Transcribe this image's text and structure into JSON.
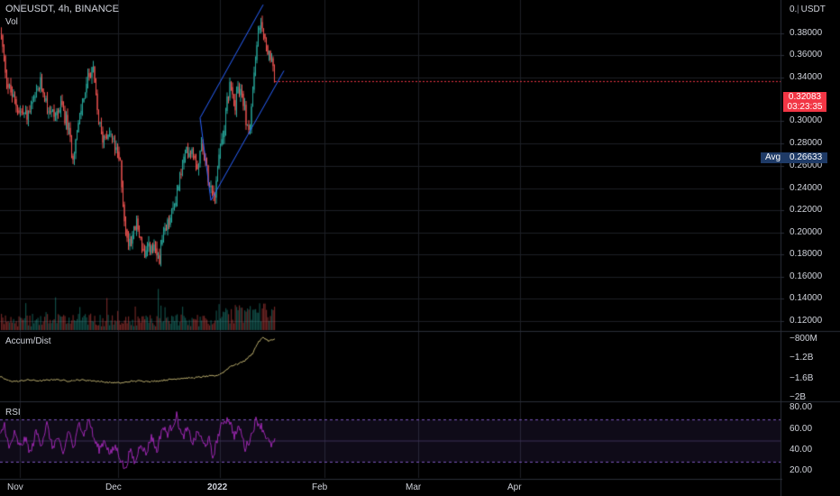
{
  "header": {
    "symbol_line": "ONEUSDT, 4h, BINANCE",
    "volume_label": "Vol"
  },
  "currency_button": "USDT",
  "price_axis": {
    "ticks": [
      "0.38000",
      "0.36000",
      "0.34000",
      "0.30000",
      "0.28000",
      "0.26000",
      "0.24000",
      "0.22000",
      "0.20000",
      "0.18000",
      "0.16000",
      "0.14000",
      "0.12000"
    ],
    "top_truncated_label": "0."
  },
  "last_price": {
    "value": "0.32083",
    "countdown": "03:23:35"
  },
  "avg_tag": {
    "label": "Avg",
    "value": "0.26633"
  },
  "accum_pane": {
    "title": "Accum/Dist",
    "ticks": [
      "−800M",
      "−1.2B",
      "−1.6B",
      "−2B"
    ]
  },
  "rsi_pane": {
    "title": "RSI",
    "ticks": [
      "80.00",
      "60.00",
      "40.00",
      "20.00"
    ]
  },
  "time_axis": {
    "labels": [
      {
        "text": "Nov",
        "bold": false
      },
      {
        "text": "Dec",
        "bold": false
      },
      {
        "text": "2022",
        "bold": true
      },
      {
        "text": "Feb",
        "bold": false
      },
      {
        "text": "Mar",
        "bold": false
      },
      {
        "text": "Apr",
        "bold": false
      }
    ]
  },
  "colors": {
    "up": "#26a69a",
    "down": "#ef5350",
    "accum_line": "#b5a86a",
    "rsi_line": "#9c27b0",
    "channel": "#2962ff",
    "grid": "#1c1f26",
    "price_tag": "#f23645",
    "avg_tag": "#1e3a66"
  },
  "chart_data": {
    "type": "candlestick",
    "symbol": "ONEUSDT",
    "interval": "4h",
    "exchange": "BINANCE",
    "price_range": [
      0.11,
      0.39
    ],
    "price_path": [
      [
        0,
        0.365
      ],
      [
        3,
        0.345
      ],
      [
        8,
        0.318
      ],
      [
        15,
        0.305
      ],
      [
        22,
        0.295
      ],
      [
        30,
        0.292
      ],
      [
        38,
        0.305
      ],
      [
        45,
        0.32
      ],
      [
        52,
        0.3
      ],
      [
        60,
        0.292
      ],
      [
        68,
        0.3
      ],
      [
        75,
        0.282
      ],
      [
        80,
        0.258
      ],
      [
        86,
        0.28
      ],
      [
        92,
        0.308
      ],
      [
        98,
        0.325
      ],
      [
        102,
        0.335
      ],
      [
        108,
        0.292
      ],
      [
        113,
        0.272
      ],
      [
        120,
        0.28
      ],
      [
        127,
        0.265
      ],
      [
        133,
        0.25
      ],
      [
        137,
        0.21
      ],
      [
        140,
        0.185
      ],
      [
        146,
        0.19
      ],
      [
        151,
        0.2
      ],
      [
        156,
        0.186
      ],
      [
        160,
        0.17
      ],
      [
        165,
        0.18
      ],
      [
        170,
        0.178
      ],
      [
        176,
        0.17
      ],
      [
        180,
        0.186
      ],
      [
        186,
        0.2
      ],
      [
        191,
        0.21
      ],
      [
        196,
        0.228
      ],
      [
        202,
        0.25
      ],
      [
        207,
        0.262
      ],
      [
        213,
        0.264
      ],
      [
        219,
        0.25
      ],
      [
        224,
        0.27
      ],
      [
        229,
        0.245
      ],
      [
        234,
        0.232
      ],
      [
        238,
        0.228
      ],
      [
        243,
        0.26
      ],
      [
        248,
        0.28
      ],
      [
        252,
        0.308
      ],
      [
        256,
        0.32
      ],
      [
        260,
        0.3
      ],
      [
        264,
        0.315
      ],
      [
        268,
        0.312
      ],
      [
        272,
        0.29
      ],
      [
        276,
        0.278
      ],
      [
        280,
        0.31
      ],
      [
        285,
        0.355
      ],
      [
        289,
        0.372
      ],
      [
        293,
        0.36
      ],
      [
        297,
        0.345
      ],
      [
        301,
        0.335
      ],
      [
        305,
        0.321
      ]
    ],
    "channel_lines": [
      {
        "x1": 222,
        "p1": 0.29,
        "x2": 292,
        "p2": 0.386
      },
      {
        "x1": 234,
        "p1": 0.22,
        "x2": 315,
        "p2": 0.33
      }
    ],
    "accum_range": [
      -2.0,
      -0.7
    ],
    "accum_path": [
      [
        0,
        -1.54
      ],
      [
        10,
        -1.62
      ],
      [
        20,
        -1.63
      ],
      [
        30,
        -1.6
      ],
      [
        45,
        -1.62
      ],
      [
        60,
        -1.59
      ],
      [
        75,
        -1.62
      ],
      [
        90,
        -1.6
      ],
      [
        105,
        -1.62
      ],
      [
        120,
        -1.65
      ],
      [
        135,
        -1.66
      ],
      [
        145,
        -1.63
      ],
      [
        155,
        -1.62
      ],
      [
        170,
        -1.63
      ],
      [
        185,
        -1.6
      ],
      [
        200,
        -1.57
      ],
      [
        215,
        -1.56
      ],
      [
        230,
        -1.53
      ],
      [
        240,
        -1.52
      ],
      [
        248,
        -1.45
      ],
      [
        256,
        -1.33
      ],
      [
        264,
        -1.29
      ],
      [
        272,
        -1.22
      ],
      [
        280,
        -1.09
      ],
      [
        286,
        -0.88
      ],
      [
        292,
        -0.77
      ],
      [
        298,
        -0.84
      ],
      [
        305,
        -0.81
      ]
    ],
    "rsi_range": [
      15,
      85
    ],
    "rsi_levels": [
      70,
      30
    ],
    "rsi_path": [
      [
        0,
        54
      ],
      [
        5,
        66
      ],
      [
        10,
        42
      ],
      [
        16,
        57
      ],
      [
        22,
        44
      ],
      [
        28,
        52
      ],
      [
        34,
        38
      ],
      [
        40,
        59
      ],
      [
        46,
        47
      ],
      [
        52,
        66
      ],
      [
        58,
        44
      ],
      [
        64,
        53
      ],
      [
        70,
        36
      ],
      [
        76,
        61
      ],
      [
        82,
        42
      ],
      [
        88,
        69
      ],
      [
        93,
        56
      ],
      [
        99,
        71
      ],
      [
        104,
        52
      ],
      [
        110,
        42
      ],
      [
        116,
        51
      ],
      [
        122,
        37
      ],
      [
        128,
        45
      ],
      [
        134,
        33
      ],
      [
        139,
        22
      ],
      [
        144,
        41
      ],
      [
        150,
        29
      ],
      [
        156,
        49
      ],
      [
        162,
        37
      ],
      [
        168,
        55
      ],
      [
        174,
        40
      ],
      [
        180,
        63
      ],
      [
        186,
        57
      ],
      [
        192,
        66
      ],
      [
        196,
        74
      ],
      [
        202,
        53
      ],
      [
        208,
        61
      ],
      [
        214,
        48
      ],
      [
        220,
        59
      ],
      [
        226,
        46
      ],
      [
        232,
        51
      ],
      [
        236,
        34
      ],
      [
        242,
        55
      ],
      [
        248,
        69
      ],
      [
        254,
        71
      ],
      [
        260,
        55
      ],
      [
        266,
        63
      ],
      [
        272,
        43
      ],
      [
        278,
        53
      ],
      [
        284,
        70
      ],
      [
        290,
        64
      ],
      [
        296,
        53
      ],
      [
        300,
        46
      ],
      [
        305,
        49
      ]
    ]
  }
}
